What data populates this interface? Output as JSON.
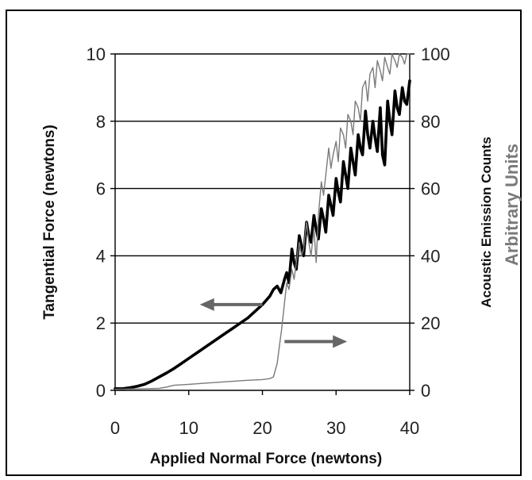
{
  "chart_data": {
    "type": "line",
    "title": "",
    "xlabel": "Applied Normal Force  (newtons)",
    "ylabel_left": "Tangential Force  (newtons)",
    "ylabel_right_line1": "Acoustic Emission Counts",
    "ylabel_right_line2": "Arbitrary Units",
    "xlim": [
      0,
      40
    ],
    "ylim_left": [
      0,
      10
    ],
    "ylim_right": [
      0,
      100
    ],
    "x_ticks": [
      0,
      10,
      20,
      30,
      40
    ],
    "y_ticks_left": [
      0,
      2,
      4,
      6,
      8,
      10
    ],
    "y_ticks_right": [
      0,
      20,
      40,
      60,
      80,
      100
    ],
    "grid": "horizontal",
    "series": [
      {
        "axis": "left",
        "color": "#000000",
        "stroke": "thick",
        "x": [
          0,
          1,
          2,
          3,
          4,
          5,
          6,
          7,
          8,
          9,
          10,
          11,
          12,
          13,
          14,
          15,
          16,
          17,
          18,
          19,
          20,
          21,
          21.5,
          22,
          22.5,
          23,
          23.3,
          23.6,
          24,
          24.3,
          24.6,
          25,
          25.3,
          25.6,
          26,
          26.3,
          26.6,
          27,
          27.3,
          27.6,
          28,
          28.3,
          28.6,
          29,
          29.3,
          29.6,
          30,
          30.3,
          30.6,
          31,
          31.3,
          31.6,
          32,
          32.3,
          32.6,
          33,
          33.3,
          33.6,
          34,
          34.3,
          34.6,
          35,
          35.3,
          35.6,
          36,
          36.3,
          36.6,
          37,
          37.3,
          37.6,
          38,
          38.3,
          38.6,
          39,
          39.3,
          39.6,
          40
        ],
        "y": [
          0.05,
          0.05,
          0.08,
          0.12,
          0.18,
          0.28,
          0.4,
          0.52,
          0.65,
          0.8,
          0.95,
          1.1,
          1.25,
          1.4,
          1.55,
          1.7,
          1.85,
          2.0,
          2.15,
          2.35,
          2.55,
          2.8,
          3.0,
          3.1,
          2.9,
          3.3,
          3.5,
          3.2,
          4.2,
          3.8,
          3.6,
          4.6,
          4.3,
          4.0,
          5.0,
          4.6,
          4.4,
          5.2,
          4.8,
          4.5,
          5.4,
          5.1,
          4.7,
          5.8,
          5.5,
          5.2,
          6.3,
          5.9,
          5.6,
          6.8,
          6.4,
          6.0,
          7.2,
          6.8,
          6.4,
          7.6,
          7.2,
          7.0,
          8.3,
          7.6,
          7.2,
          8.0,
          7.5,
          7.1,
          8.4,
          7.0,
          6.7,
          8.6,
          8.0,
          7.6,
          8.9,
          8.4,
          8.2,
          9.0,
          8.6,
          8.5,
          9.2
        ]
      },
      {
        "axis": "right",
        "color": "#7a7a7a",
        "stroke": "thin",
        "x": [
          0,
          2,
          4,
          6,
          7,
          8,
          10,
          12,
          14,
          16,
          18,
          20,
          21,
          21.5,
          22,
          22.3,
          22.6,
          23,
          23.3,
          23.6,
          24,
          24.3,
          24.6,
          25,
          25.3,
          25.6,
          26,
          26.3,
          26.6,
          27,
          27.3,
          27.6,
          28,
          28.3,
          28.6,
          29,
          29.3,
          29.6,
          30,
          30.3,
          30.6,
          31,
          31.3,
          31.6,
          32,
          32.3,
          32.6,
          33,
          33.3,
          33.6,
          34,
          34.3,
          34.6,
          35,
          35.3,
          35.6,
          36,
          36.3,
          36.6,
          37,
          37.3,
          37.6,
          38,
          38.3,
          38.6,
          39,
          39.3,
          39.6,
          40
        ],
        "y": [
          0.3,
          0.4,
          0.5,
          0.6,
          1.0,
          1.5,
          1.8,
          2.1,
          2.4,
          2.7,
          3.0,
          3.2,
          3.5,
          4.0,
          8.0,
          13.0,
          18.0,
          26.0,
          32.0,
          30.0,
          36.0,
          33.0,
          38.0,
          44.0,
          40.0,
          42.0,
          50.0,
          44.0,
          40.0,
          48.0,
          38.0,
          52.0,
          62.0,
          58.0,
          64.0,
          72.0,
          66.0,
          70.0,
          74.0,
          68.0,
          78.0,
          76.0,
          72.0,
          82.0,
          80.0,
          76.0,
          86.0,
          84.0,
          80.0,
          90.0,
          92.0,
          86.0,
          94.0,
          96.0,
          90.0,
          98.0,
          95.0,
          92.0,
          99.0,
          96.0,
          94.0,
          100.0,
          98.0,
          96.0,
          100.0,
          99.0,
          97.0,
          100.0,
          100.0
        ]
      }
    ],
    "annotations": [
      {
        "kind": "arrow",
        "direction": "left",
        "color": "#666666",
        "from": [
          20,
          2.55
        ],
        "to": [
          11.5,
          2.55
        ]
      },
      {
        "kind": "arrow",
        "direction": "right",
        "color": "#666666",
        "from": [
          23,
          1.45
        ],
        "to": [
          31.5,
          1.45
        ]
      }
    ]
  }
}
